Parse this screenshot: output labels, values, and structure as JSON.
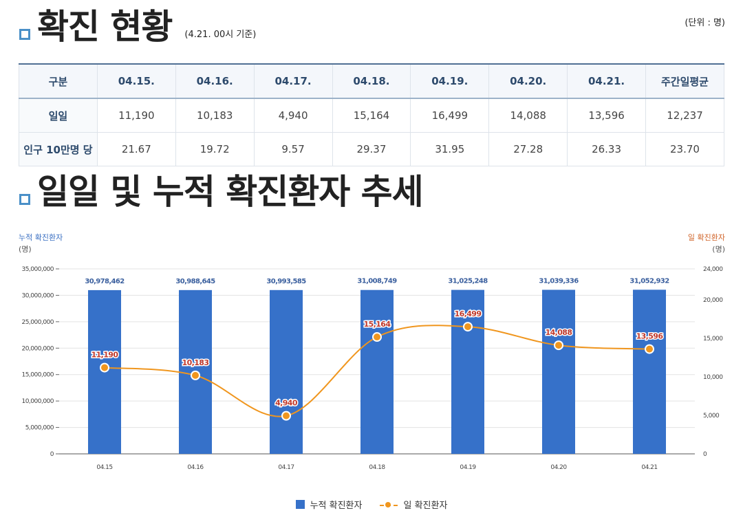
{
  "header": {
    "title": "확진 현황",
    "subtitle": "(4.21. 00시 기준)",
    "unit": "(단위 : 명)"
  },
  "table": {
    "columns": [
      "구분",
      "04.15.",
      "04.16.",
      "04.17.",
      "04.18.",
      "04.19.",
      "04.20.",
      "04.21.",
      "주간일평균"
    ],
    "rows": [
      {
        "label": "일일",
        "values": [
          "11,190",
          "10,183",
          "4,940",
          "15,164",
          "16,499",
          "14,088",
          "13,596",
          "12,237"
        ]
      },
      {
        "label": "인구 10만명 당",
        "values": [
          "21.67",
          "19.72",
          "9.57",
          "29.37",
          "31.95",
          "27.28",
          "26.33",
          "23.70"
        ]
      }
    ]
  },
  "trend": {
    "title": "일일 및 누적 확진환자 추세",
    "left_axis_title": "누적 확진환자",
    "left_axis_unit": "(명)",
    "right_axis_title": "일 확진환자",
    "right_axis_unit": "(명)",
    "legend_cumulative": "누적 확진환자",
    "legend_daily": "일 확진환자"
  },
  "colors": {
    "bar": "#3671c9",
    "line": "#f0961e",
    "daily_label": "#c0392b",
    "cumulative_label": "#3a5f9e"
  },
  "chart_data": {
    "type": "bar",
    "categories": [
      "04.15",
      "04.16",
      "04.17",
      "04.18",
      "04.19",
      "04.20",
      "04.21"
    ],
    "series": [
      {
        "name": "누적 확진환자",
        "type": "bar",
        "axis": "left",
        "values": [
          30978462,
          30988645,
          30993585,
          31008749,
          31025248,
          31039336,
          31052932
        ],
        "labels": [
          "30,978,462",
          "30,988,645",
          "30,993,585",
          "31,008,749",
          "31,025,248",
          "31,039,336",
          "31,052,932"
        ]
      },
      {
        "name": "일 확진환자",
        "type": "line",
        "axis": "right",
        "values": [
          11190,
          10183,
          4940,
          15164,
          16499,
          14088,
          13596
        ],
        "labels": [
          "11,190",
          "10,183",
          "4,940",
          "15,164",
          "16,499",
          "14,088",
          "13,596"
        ]
      }
    ],
    "left_axis": {
      "ylim": [
        0,
        35000000
      ],
      "ticks": [
        0,
        5000000,
        10000000,
        15000000,
        20000000,
        25000000,
        30000000,
        35000000
      ],
      "tick_labels": [
        "0",
        "5,000,000",
        "10,000,000",
        "15,000,000",
        "20,000,000",
        "25,000,000",
        "30,000,000",
        "35,000,000"
      ]
    },
    "right_axis": {
      "ylim": [
        0,
        24000
      ],
      "ticks": [
        0,
        5000,
        10000,
        15000,
        20000,
        24000
      ],
      "tick_labels": [
        "0",
        "5,000",
        "10,000",
        "15,000",
        "20,000",
        "24,000"
      ]
    },
    "grid": true,
    "legend_position": "bottom"
  }
}
